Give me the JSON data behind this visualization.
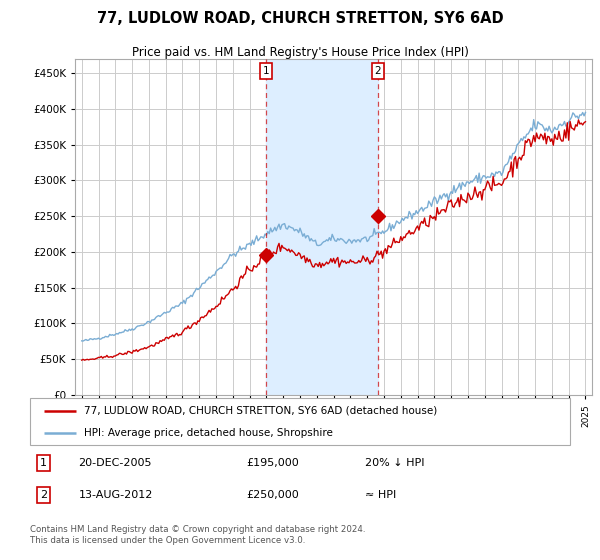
{
  "title": "77, LUDLOW ROAD, CHURCH STRETTON, SY6 6AD",
  "subtitle": "Price paid vs. HM Land Registry's House Price Index (HPI)",
  "legend_line1": "77, LUDLOW ROAD, CHURCH STRETTON, SY6 6AD (detached house)",
  "legend_line2": "HPI: Average price, detached house, Shropshire",
  "annotation1_date": "20-DEC-2005",
  "annotation1_price": "£195,000",
  "annotation1_note": "20% ↓ HPI",
  "annotation2_date": "13-AUG-2012",
  "annotation2_price": "£250,000",
  "annotation2_note": "≈ HPI",
  "footer": "Contains HM Land Registry data © Crown copyright and database right 2024.\nThis data is licensed under the Open Government Licence v3.0.",
  "hpi_color": "#7aadd4",
  "price_color": "#cc0000",
  "grid_color": "#cccccc",
  "shaded_region_color": "#ddeeff",
  "ylim": [
    0,
    470000
  ],
  "yticks": [
    0,
    50000,
    100000,
    150000,
    200000,
    250000,
    300000,
    350000,
    400000,
    450000
  ],
  "sale1_year": 2005.97,
  "sale1_price": 195000,
  "sale2_year": 2012.62,
  "sale2_price": 250000,
  "xlim_left": 1994.6,
  "xlim_right": 2025.4
}
